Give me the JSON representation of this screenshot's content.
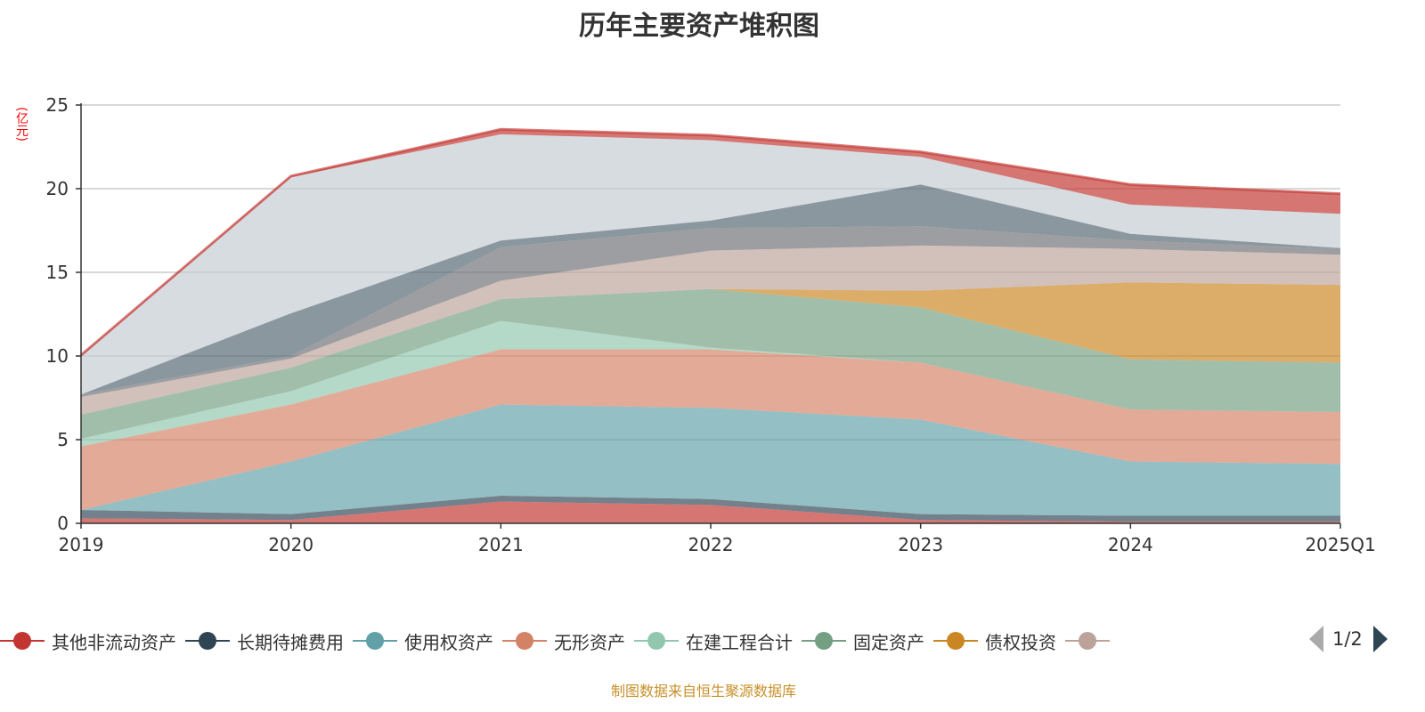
{
  "chart_data": {
    "type": "area",
    "stacked": true,
    "title": "历年主要资产堆积图",
    "ylabel": "(亿元)",
    "xlabel": "",
    "ylim": [
      0,
      25
    ],
    "yticks": [
      "0",
      "5",
      "10",
      "15",
      "20",
      "25"
    ],
    "categories": [
      "2019",
      "2020",
      "2021",
      "2022",
      "2023",
      "2024",
      "2025Q1"
    ],
    "grid": true,
    "legend_position": "bottom",
    "series": [
      {
        "name": "其他非流动资产",
        "color": "#c23531",
        "values": [
          0.3,
          0.2,
          1.3,
          1.1,
          0.2,
          0.1,
          0.1
        ]
      },
      {
        "name": "长期待摊费用",
        "color": "#2f4554",
        "values": [
          0.5,
          0.35,
          0.35,
          0.35,
          0.35,
          0.35,
          0.35
        ]
      },
      {
        "name": "使用权资产",
        "color": "#61a0a8",
        "values": [
          0.0,
          3.15,
          5.45,
          5.45,
          5.65,
          3.25,
          3.1
        ]
      },
      {
        "name": "无形资产",
        "color": "#d48265",
        "values": [
          3.8,
          3.4,
          3.3,
          3.5,
          3.4,
          3.1,
          3.1
        ]
      },
      {
        "name": "在建工程合计",
        "color": "#91c7ae",
        "values": [
          0.45,
          0.8,
          1.7,
          0.1,
          0.0,
          0.0,
          0.0
        ]
      },
      {
        "name": "固定资产",
        "color": "#749f83",
        "values": [
          1.45,
          1.4,
          1.3,
          3.5,
          3.3,
          3.0,
          2.95
        ]
      },
      {
        "name": "债权投资",
        "color": "#ca8622",
        "values": [
          0.0,
          0.0,
          0.0,
          0.0,
          1.0,
          4.6,
          4.65
        ]
      },
      {
        "name": "",
        "color": "#bda29a",
        "values": [
          1.05,
          0.55,
          1.1,
          2.3,
          2.7,
          2.0,
          1.8
        ]
      },
      {
        "name": "",
        "color": "#6e7074",
        "values": [
          0.15,
          0.15,
          2.0,
          1.35,
          1.15,
          0.5,
          0.35
        ]
      },
      {
        "name": "",
        "color": "#546570",
        "values": [
          0.0,
          2.55,
          0.4,
          0.45,
          2.5,
          0.4,
          0.05
        ]
      },
      {
        "name": "",
        "color": "#c4ccd3",
        "values": [
          2.3,
          8.15,
          6.35,
          4.8,
          1.65,
          1.75,
          2.05
        ]
      },
      {
        "name": "",
        "color": "#c23531",
        "values": [
          0.05,
          0.05,
          0.3,
          0.3,
          0.3,
          1.2,
          1.2
        ]
      }
    ]
  },
  "legend": {
    "items": [
      "其他非流动资产",
      "长期待摊费用",
      "使用权资产",
      "无形资产",
      "在建工程合计",
      "固定资产",
      "债权投资",
      ""
    ],
    "colors": [
      "#c23531",
      "#2f4554",
      "#61a0a8",
      "#d48265",
      "#91c7ae",
      "#749f83",
      "#ca8622",
      "#bda29a"
    ],
    "page": "1/2"
  },
  "source": "制图数据来自恒生聚源数据库"
}
